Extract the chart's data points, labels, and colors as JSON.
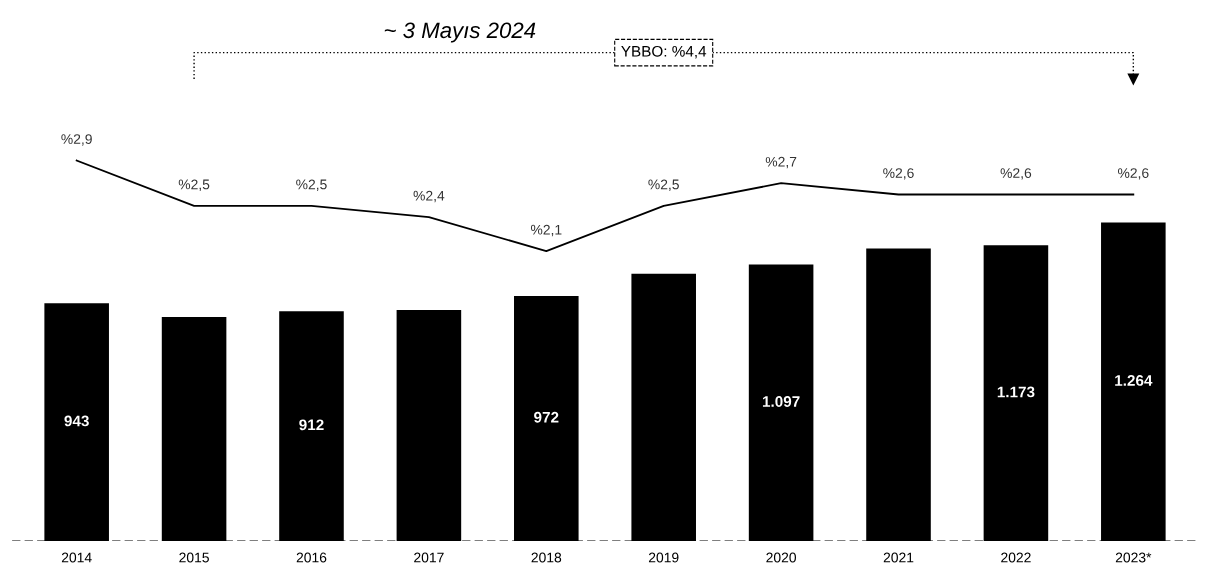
{
  "chart_data": {
    "type": "bar",
    "categories": [
      "2014",
      "2015",
      "2016",
      "2017",
      "2018",
      "2019",
      "2020",
      "2021",
      "2022",
      "2023*"
    ],
    "series": [
      {
        "color": "#000000",
        "values": [
          943,
          889,
          912,
          917,
          972,
          1060,
          1097,
          1160,
          1173,
          1264
        ],
        "value_labels": [
          "943",
          null,
          "912",
          null,
          "972",
          null,
          "1.097",
          null,
          "1.173",
          "1.264"
        ]
      },
      {
        "type": "line",
        "axis": "y2",
        "color": "#000000",
        "values": [
          2.9,
          2.5,
          2.5,
          2.4,
          2.1,
          2.5,
          2.7,
          2.6,
          2.6,
          2.6
        ],
        "value_labels": [
          "%2,9",
          "%2,5",
          "%2,5",
          "%2,4",
          "%2,1",
          "%2,5",
          "%2,7",
          "%2,6",
          "%2,6",
          "%2,6"
        ]
      }
    ],
    "annotations": [
      "~ 3 Mayıs 2024",
      "YBBO: %4,4"
    ],
    "grid": false,
    "legend": false,
    "marker": "none",
    "line_style": "solid"
  }
}
